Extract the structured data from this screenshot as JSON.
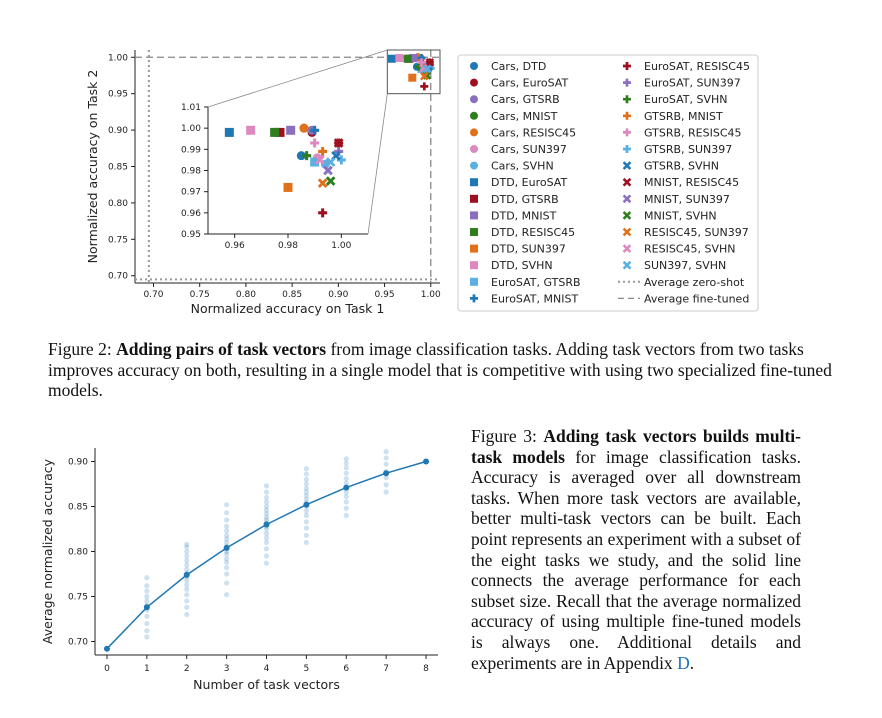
{
  "figure2": {
    "chart_data": [
      {
        "type": "scatter",
        "xlabel": "Normalized accuracy on Task 1",
        "ylabel": "Normalized accuracy on Task 2",
        "xlim": [
          0.68,
          1.01
        ],
        "ylim": [
          0.69,
          1.01
        ],
        "xticks": [
          "0.70",
          "0.75",
          "0.80",
          "0.85",
          "0.90",
          "0.95",
          "1.00"
        ],
        "yticks": [
          "0.70",
          "0.75",
          "0.80",
          "0.85",
          "0.90",
          "0.95",
          "1.00"
        ],
        "xtick_values": [
          0.7,
          0.75,
          0.8,
          0.85,
          0.9,
          0.95,
          1.0
        ],
        "ytick_values": [
          0.7,
          0.75,
          0.8,
          0.85,
          0.9,
          0.95,
          1.0
        ],
        "reference_lines": [
          {
            "name": "Average zero-shot",
            "style": "dotted",
            "x": 0.695,
            "y": 0.695
          },
          {
            "name": "Average fine-tuned",
            "style": "dashed",
            "x": 1.0,
            "y": 1.0
          }
        ],
        "series": [
          {
            "name": "Cars, DTD",
            "color": "#1f77b4",
            "marker": "circle",
            "x": 0.985,
            "y": 0.987
          },
          {
            "name": "Cars, EuroSAT",
            "color": "#9e1020",
            "marker": "circle",
            "x": 0.989,
            "y": 0.998
          },
          {
            "name": "Cars, GTSRB",
            "color": "#8b6fbf",
            "marker": "circle",
            "x": 0.989,
            "y": 0.999
          },
          {
            "name": "Cars, MNIST",
            "color": "#2e7d1e",
            "marker": "circle",
            "x": 0.986,
            "y": 1.0
          },
          {
            "name": "Cars, RESISC45",
            "color": "#e0701a",
            "marker": "circle",
            "x": 0.986,
            "y": 1.0
          },
          {
            "name": "Cars, SUN397",
            "color": "#de88c0",
            "marker": "circle",
            "x": 0.991,
            "y": 0.986
          },
          {
            "name": "Cars, SVHN",
            "color": "#5ab0e0",
            "marker": "circle",
            "x": 0.994,
            "y": 0.983
          },
          {
            "name": "DTD, EuroSAT",
            "color": "#1f77b4",
            "marker": "square",
            "x": 0.958,
            "y": 0.998
          },
          {
            "name": "DTD, GTSRB",
            "color": "#9e1020",
            "marker": "square",
            "x": 0.977,
            "y": 0.998
          },
          {
            "name": "DTD, MNIST",
            "color": "#8b6fbf",
            "marker": "square",
            "x": 0.981,
            "y": 0.999
          },
          {
            "name": "DTD, RESISC45",
            "color": "#2e7d1e",
            "marker": "square",
            "x": 0.975,
            "y": 0.998
          },
          {
            "name": "DTD, SUN397",
            "color": "#e0701a",
            "marker": "square",
            "x": 0.98,
            "y": 0.972
          },
          {
            "name": "DTD, SVHN",
            "color": "#de88c0",
            "marker": "square",
            "x": 0.966,
            "y": 0.999
          },
          {
            "name": "EuroSAT, GTSRB",
            "color": "#5ab0e0",
            "marker": "square",
            "x": 0.99,
            "y": 0.984
          },
          {
            "name": "EuroSAT, MNIST",
            "color": "#1f77b4",
            "marker": "plus",
            "x": 0.99,
            "y": 0.999
          },
          {
            "name": "EuroSAT, RESISC45",
            "color": "#9e1020",
            "marker": "plus",
            "x": 0.999,
            "y": 0.993
          },
          {
            "name": "EuroSAT, SUN397",
            "color": "#8b6fbf",
            "marker": "plus",
            "x": 0.999,
            "y": 0.989
          },
          {
            "name": "EuroSAT, SVHN",
            "color": "#2e7d1e",
            "marker": "plus",
            "x": 0.987,
            "y": 0.987
          },
          {
            "name": "GTSRB, MNIST",
            "color": "#e0701a",
            "marker": "plus",
            "x": 0.993,
            "y": 0.989
          },
          {
            "name": "GTSRB, RESISC45",
            "color": "#de88c0",
            "marker": "plus",
            "x": 0.99,
            "y": 0.993
          },
          {
            "name": "GTSRB, SUN397",
            "color": "#5ab0e0",
            "marker": "plus",
            "x": 1.0,
            "y": 0.985
          },
          {
            "name": "GTSRB, SVHN",
            "color": "#1f77b4",
            "marker": "x",
            "x": 0.998,
            "y": 0.987
          },
          {
            "name": "MNIST, RESISC45",
            "color": "#9e1020",
            "marker": "x",
            "x": 0.999,
            "y": 0.993
          },
          {
            "name": "MNIST, SUN397",
            "color": "#8b6fbf",
            "marker": "x",
            "x": 0.995,
            "y": 0.98
          },
          {
            "name": "MNIST, SVHN",
            "color": "#2e7d1e",
            "marker": "x",
            "x": 0.996,
            "y": 0.975
          },
          {
            "name": "RESISC45, SUN397",
            "color": "#e0701a",
            "marker": "x",
            "x": 0.993,
            "y": 0.974
          },
          {
            "name": "RESISC45, SVHN",
            "color": "#de88c0",
            "marker": "x",
            "x": 0.992,
            "y": 0.985
          },
          {
            "name": "SUN397, SVHN",
            "color": "#5ab0e0",
            "marker": "x",
            "x": 0.996,
            "y": 0.984
          },
          {
            "name": "EuroSAT, RESISC45 (low)",
            "color": "#9e1020",
            "marker": "plus",
            "x": 0.993,
            "y": 0.96
          }
        ]
      },
      {
        "type": "scatter",
        "role": "inset",
        "xlim": [
          0.95,
          1.01
        ],
        "ylim": [
          0.95,
          1.01
        ],
        "xticks": [
          "0.96",
          "0.98",
          "1.00"
        ],
        "yticks": [
          "0.95",
          "0.96",
          "0.97",
          "0.98",
          "0.99",
          "1.00",
          "1.01"
        ],
        "xtick_values": [
          0.96,
          0.98,
          1.0
        ],
        "ytick_values": [
          0.95,
          0.96,
          0.97,
          0.98,
          0.99,
          1.0,
          1.01
        ]
      }
    ],
    "caption": {
      "label": "Figure 2: ",
      "bold": "Adding pairs of task vectors",
      "rest": " from image classification tasks. Adding task vectors from two tasks improves accuracy on both, resulting in a single model that is competitive with using two specialized fine-tuned models."
    }
  },
  "figure3": {
    "chart_data": {
      "type": "line",
      "xlabel": "Number of task vectors",
      "ylabel": "Average normalized accuracy",
      "xlim": [
        -0.3,
        8.3
      ],
      "ylim": [
        0.685,
        0.915
      ],
      "xticks": [
        "0",
        "1",
        "2",
        "3",
        "4",
        "5",
        "6",
        "7",
        "8"
      ],
      "yticks": [
        "0.70",
        "0.75",
        "0.80",
        "0.85",
        "0.90"
      ],
      "ytick_values": [
        0.7,
        0.75,
        0.8,
        0.85,
        0.9
      ],
      "color": "#1f77b4",
      "series": [
        {
          "x": [
            0,
            1,
            2,
            3,
            4,
            5,
            6,
            7,
            8
          ],
          "values": [
            0.692,
            0.738,
            0.774,
            0.804,
            0.83,
            0.852,
            0.871,
            0.887,
            0.9
          ]
        }
      ],
      "scatter": [
        {
          "x": 1,
          "values": [
            0.705,
            0.712,
            0.72,
            0.728,
            0.735,
            0.74,
            0.745,
            0.75,
            0.756,
            0.762,
            0.771
          ]
        },
        {
          "x": 2,
          "values": [
            0.73,
            0.738,
            0.745,
            0.752,
            0.758,
            0.763,
            0.768,
            0.772,
            0.776,
            0.78,
            0.785,
            0.79,
            0.795,
            0.8,
            0.805,
            0.808
          ]
        },
        {
          "x": 3,
          "values": [
            0.752,
            0.765,
            0.775,
            0.782,
            0.788,
            0.792,
            0.797,
            0.8,
            0.803,
            0.806,
            0.81,
            0.814,
            0.818,
            0.823,
            0.828,
            0.835,
            0.843,
            0.852
          ]
        },
        {
          "x": 4,
          "values": [
            0.787,
            0.795,
            0.803,
            0.81,
            0.815,
            0.82,
            0.825,
            0.828,
            0.832,
            0.835,
            0.838,
            0.842,
            0.846,
            0.85,
            0.855,
            0.86,
            0.866,
            0.873
          ]
        },
        {
          "x": 5,
          "values": [
            0.81,
            0.818,
            0.826,
            0.833,
            0.84,
            0.845,
            0.85,
            0.854,
            0.858,
            0.862,
            0.866,
            0.87,
            0.875,
            0.88,
            0.886,
            0.892
          ]
        },
        {
          "x": 6,
          "values": [
            0.84,
            0.848,
            0.855,
            0.861,
            0.866,
            0.871,
            0.876,
            0.881,
            0.887,
            0.893,
            0.898,
            0.903
          ]
        },
        {
          "x": 7,
          "values": [
            0.866,
            0.874,
            0.882,
            0.889,
            0.897,
            0.904,
            0.911
          ]
        }
      ]
    },
    "caption": {
      "label": "Figure 3:   ",
      "bold": "Adding task vectors builds multi-task models",
      "rest": " for image classification tasks. Accuracy is averaged over all downstream tasks. When more task vectors are available, better multi-task vectors can be built. Each point represents an experiment with a subset of the eight tasks we study, and the solid line connects the average performance for each subset size. Recall that the average normalized accuracy of using multiple fine-tuned models is always one. Additional details and experiments are in Appendix ",
      "link": "D",
      "end": "."
    }
  }
}
